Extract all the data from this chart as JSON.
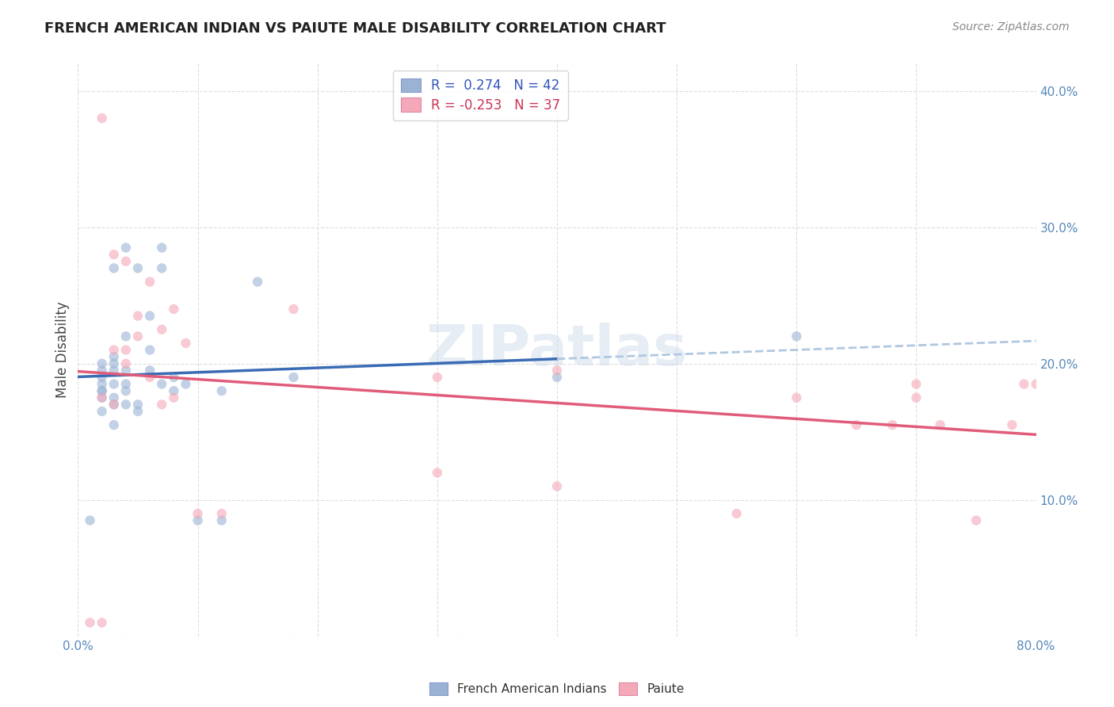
{
  "title": "FRENCH AMERICAN INDIAN VS PAIUTE MALE DISABILITY CORRELATION CHART",
  "source": "Source: ZipAtlas.com",
  "xlabel_french": "French American Indians",
  "xlabel_paiute": "Paiute",
  "ylabel": "Male Disability",
  "xlim": [
    0,
    0.8
  ],
  "ylim": [
    0,
    0.42
  ],
  "xticks": [
    0.0,
    0.1,
    0.2,
    0.3,
    0.4,
    0.5,
    0.6,
    0.7,
    0.8
  ],
  "yticks": [
    0.0,
    0.1,
    0.2,
    0.3,
    0.4
  ],
  "legend_r_french": "0.274",
  "legend_n_french": "42",
  "legend_r_paiute": "-0.253",
  "legend_n_paiute": "37",
  "french_color": "#9ab3d5",
  "paiute_color": "#f4a8b8",
  "french_line_color": "#3a6bb5",
  "paiute_line_color": "#e05c7a",
  "trendline_extension_color": "#b0c8e0",
  "marker_size": 80,
  "marker_alpha": 0.6,
  "french_points_x": [
    0.01,
    0.02,
    0.02,
    0.02,
    0.02,
    0.02,
    0.02,
    0.02,
    0.02,
    0.03,
    0.03,
    0.03,
    0.03,
    0.03,
    0.03,
    0.03,
    0.03,
    0.04,
    0.04,
    0.04,
    0.04,
    0.04,
    0.04,
    0.05,
    0.05,
    0.05,
    0.06,
    0.06,
    0.06,
    0.07,
    0.07,
    0.07,
    0.08,
    0.08,
    0.09,
    0.1,
    0.12,
    0.12,
    0.15,
    0.18,
    0.4,
    0.6
  ],
  "french_points_y": [
    0.085,
    0.165,
    0.175,
    0.18,
    0.18,
    0.185,
    0.19,
    0.195,
    0.2,
    0.155,
    0.17,
    0.175,
    0.185,
    0.195,
    0.2,
    0.205,
    0.27,
    0.17,
    0.18,
    0.185,
    0.195,
    0.22,
    0.285,
    0.165,
    0.17,
    0.27,
    0.195,
    0.21,
    0.235,
    0.185,
    0.27,
    0.285,
    0.18,
    0.19,
    0.185,
    0.085,
    0.085,
    0.18,
    0.26,
    0.19,
    0.19,
    0.22
  ],
  "paiute_points_x": [
    0.01,
    0.02,
    0.02,
    0.02,
    0.03,
    0.03,
    0.03,
    0.04,
    0.04,
    0.04,
    0.05,
    0.05,
    0.06,
    0.06,
    0.07,
    0.07,
    0.08,
    0.08,
    0.09,
    0.1,
    0.12,
    0.18,
    0.3,
    0.3,
    0.4,
    0.4,
    0.55,
    0.6,
    0.65,
    0.68,
    0.7,
    0.7,
    0.72,
    0.75,
    0.78,
    0.79,
    0.8
  ],
  "paiute_points_y": [
    0.01,
    0.01,
    0.175,
    0.38,
    0.17,
    0.21,
    0.28,
    0.2,
    0.21,
    0.275,
    0.22,
    0.235,
    0.19,
    0.26,
    0.17,
    0.225,
    0.175,
    0.24,
    0.215,
    0.09,
    0.09,
    0.24,
    0.12,
    0.19,
    0.195,
    0.11,
    0.09,
    0.175,
    0.155,
    0.155,
    0.175,
    0.185,
    0.155,
    0.085,
    0.155,
    0.185,
    0.185
  ],
  "background_color": "#ffffff",
  "grid_color": "#dddddd"
}
